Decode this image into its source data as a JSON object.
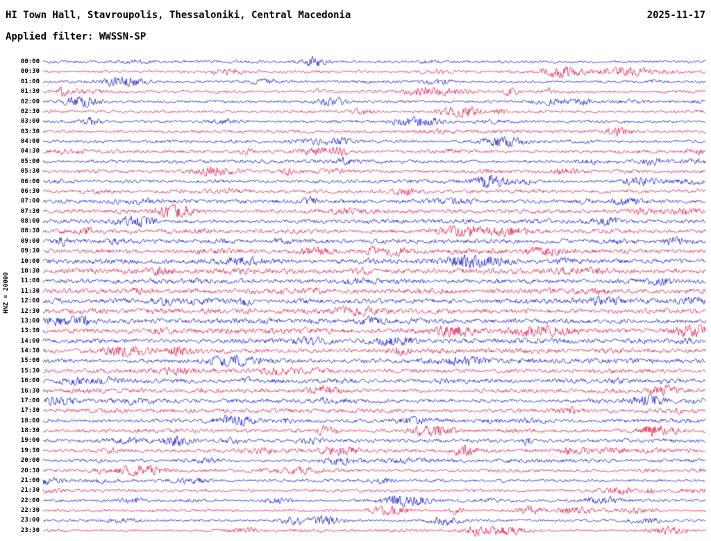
{
  "header": {
    "station_title": "HI Town Hall, Stavroupolis, Thessaloniki, Central Macedonia",
    "date": "2025-11-17",
    "filter_label": "Applied filter: WWSSN-SP"
  },
  "axis": {
    "channel_label": "HNZ = 20000"
  },
  "chart_data": {
    "type": "line",
    "subtype": "helicorder_dayplot",
    "title": "HI Town Hall, Stavroupolis, Thessaloniki, Central Macedonia",
    "date": "2025-11-17",
    "station": "HI Town Hall, Stavroupolis",
    "channel": "HNZ",
    "amplitude_scale": 20000,
    "filter": "WWSSN-SP",
    "minutes_per_row": 30,
    "rows": 48,
    "categories": [
      "00:00",
      "00:30",
      "01:00",
      "01:30",
      "02:00",
      "02:30",
      "03:00",
      "03:30",
      "04:00",
      "04:30",
      "05:00",
      "05:30",
      "06:00",
      "06:30",
      "07:00",
      "07:30",
      "08:00",
      "08:30",
      "09:00",
      "09:30",
      "10:00",
      "10:30",
      "11:00",
      "11:30",
      "12:00",
      "12:30",
      "13:00",
      "13:30",
      "14:00",
      "14:30",
      "15:00",
      "15:30",
      "16:00",
      "16:30",
      "17:00",
      "17:30",
      "18:00",
      "18:30",
      "19:00",
      "19:30",
      "20:00",
      "20:30",
      "21:00",
      "21:30",
      "22:00",
      "22:30",
      "23:00",
      "23:30"
    ],
    "legend": "none",
    "grid": false,
    "trace_color_cycle": [
      "blue",
      "red"
    ],
    "description": "Continuous 24-hour seismogram (helicorder day plot); each row spans 30 minutes of band-filtered ambient seismic noise with intermittent higher-amplitude bursts. Row trace colors alternate blue/red starting with blue at 00:00. Waveform samples are stochastic noise, regenerated deterministically from the seed."
  },
  "style": {
    "background": "#ffffff",
    "text_color": "#000000",
    "trace_colors": {
      "blue": "#0b0bcd",
      "red": "#e60e4a"
    },
    "seed": 20251117
  }
}
